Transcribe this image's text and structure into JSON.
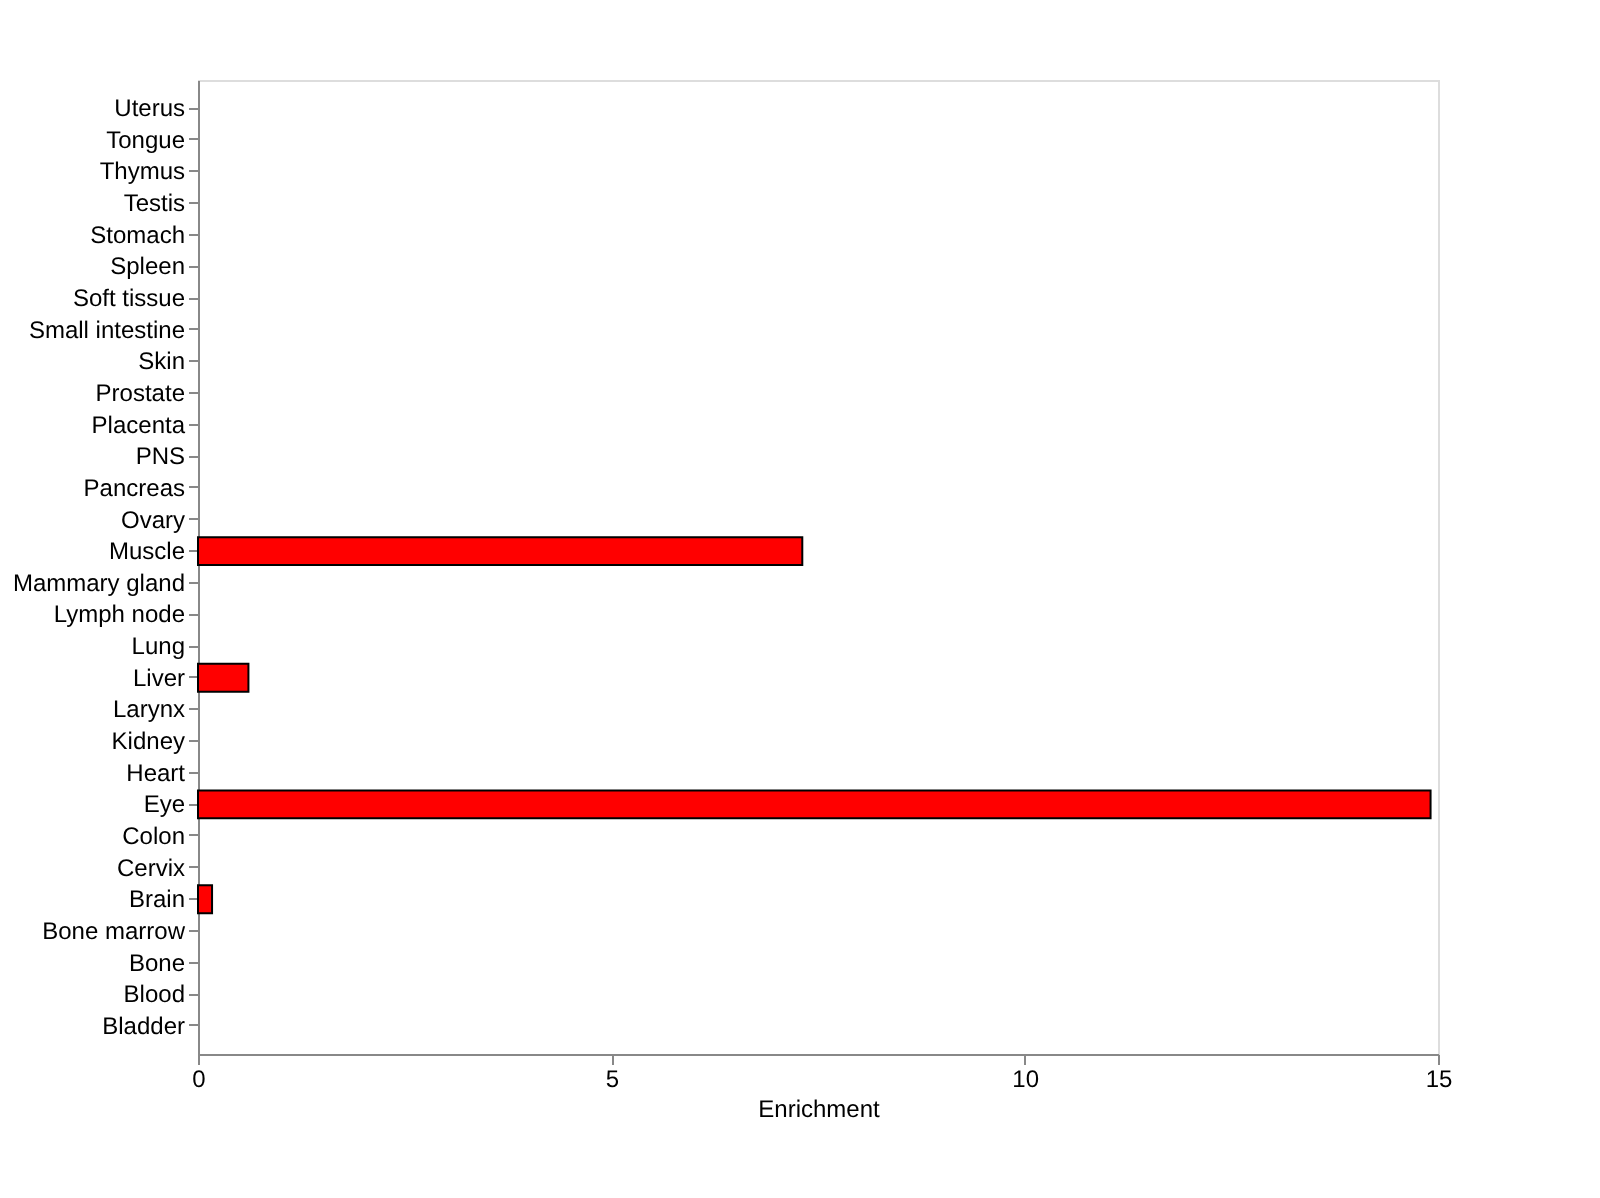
{
  "chart_data": {
    "type": "bar",
    "orientation": "horizontal",
    "xlabel": "Enrichment",
    "categories": [
      "Uterus",
      "Tongue",
      "Thymus",
      "Testis",
      "Stomach",
      "Spleen",
      "Soft tissue",
      "Small intestine",
      "Skin",
      "Prostate",
      "Placenta",
      "PNS",
      "Pancreas",
      "Ovary",
      "Muscle",
      "Mammary gland",
      "Lymph node",
      "Lung",
      "Liver",
      "Larynx",
      "Kidney",
      "Heart",
      "Eye",
      "Colon",
      "Cervix",
      "Brain",
      "Bone marrow",
      "Bone",
      "Blood",
      "Bladder"
    ],
    "values": [
      0,
      0,
      0,
      0,
      0,
      0,
      0,
      0,
      0,
      0,
      0,
      0,
      0,
      0,
      7.31,
      0,
      0,
      0,
      0.61,
      0,
      0,
      0,
      14.91,
      0,
      0,
      0.17,
      0,
      0,
      0,
      0
    ],
    "color": "#ff0000",
    "xlim": [
      0,
      15
    ],
    "xticks": [
      0,
      5,
      10,
      15
    ],
    "grid": false
  }
}
